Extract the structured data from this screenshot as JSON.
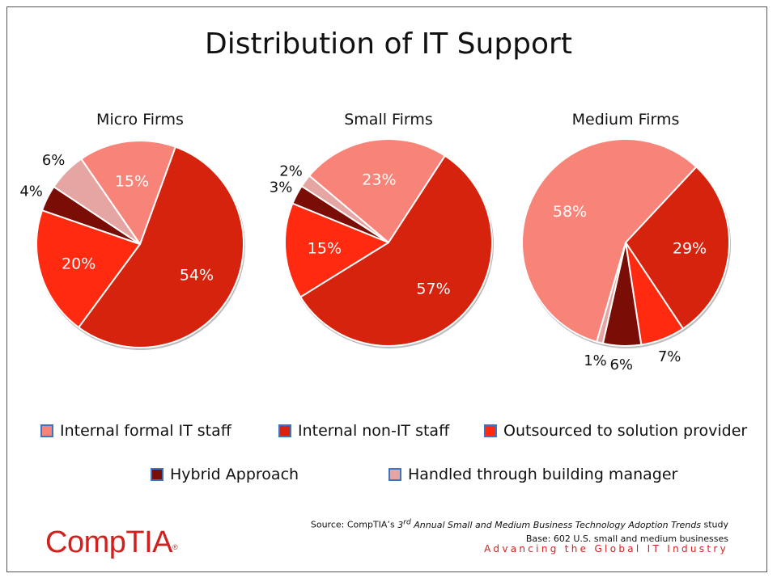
{
  "title": "Distribution of IT Support",
  "legend": [
    {
      "label": "Internal formal IT staff",
      "color": "#f88378"
    },
    {
      "label": "Internal non-IT staff",
      "color": "#d6230d"
    },
    {
      "label": "Outsourced to solution provider",
      "color": "#ff2a10"
    },
    {
      "label": "Hybrid Approach",
      "color": "#7a0d06"
    },
    {
      "label": "Handled through building manager",
      "color": "#e5a6a3"
    }
  ],
  "source": {
    "line1_prefix": "Source: CompTIA’s ",
    "line1_ordinal": "3",
    "line1_sup": "rd",
    "line1_italic": " Annual Small and Medium Business Technology Adoption Trends",
    "line1_suffix": " study",
    "line2": "Base: 602 U.S. small and medium businesses"
  },
  "tagline": "Advancing the Global IT Industry",
  "logo": {
    "text": "CompTIA",
    "mark": "®"
  },
  "chart_data": [
    {
      "type": "pie",
      "title": "Micro Firms",
      "slices": [
        {
          "category": "Internal non-IT staff",
          "value": 54,
          "label": "54%"
        },
        {
          "category": "Outsourced to solution provider",
          "value": 20,
          "label": "20%"
        },
        {
          "category": "Hybrid Approach",
          "value": 4,
          "label": "4%"
        },
        {
          "category": "Handled through building manager",
          "value": 6,
          "label": "6%"
        },
        {
          "category": "Internal formal IT staff",
          "value": 15,
          "label": "15%"
        }
      ]
    },
    {
      "type": "pie",
      "title": "Small Firms",
      "slices": [
        {
          "category": "Internal non-IT staff",
          "value": 57,
          "label": "57%"
        },
        {
          "category": "Outsourced to solution provider",
          "value": 15,
          "label": "15%"
        },
        {
          "category": "Hybrid Approach",
          "value": 3,
          "label": "3%"
        },
        {
          "category": "Handled through building manager",
          "value": 2,
          "label": "2%"
        },
        {
          "category": "Internal formal IT staff",
          "value": 23,
          "label": "23%"
        }
      ]
    },
    {
      "type": "pie",
      "title": "Medium Firms",
      "slices": [
        {
          "category": "Internal non-IT staff",
          "value": 29,
          "label": "29%"
        },
        {
          "category": "Outsourced to solution provider",
          "value": 7,
          "label": "7%"
        },
        {
          "category": "Hybrid Approach",
          "value": 6,
          "label": "6%"
        },
        {
          "category": "Handled through building manager",
          "value": 1,
          "label": "1%"
        },
        {
          "category": "Internal formal IT staff",
          "value": 58,
          "label": "58%"
        }
      ]
    }
  ]
}
